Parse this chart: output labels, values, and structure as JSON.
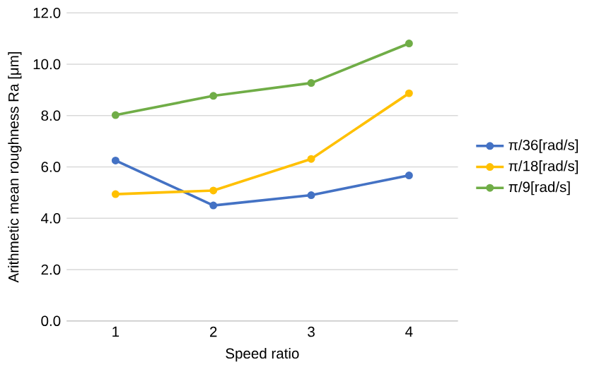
{
  "chart_data": {
    "type": "line",
    "xlabel": "Speed ratio",
    "ylabel": "Arithmetic mean roughness Ra [μm]",
    "categories": [
      "1",
      "2",
      "3",
      "4"
    ],
    "series": [
      {
        "name": "π/36[rad/s]",
        "color": "#4472c4",
        "values": [
          6.25,
          4.5,
          4.9,
          5.67
        ]
      },
      {
        "name": "π/18[rad/s]",
        "color": "#ffc000",
        "values": [
          4.94,
          5.08,
          6.31,
          8.87
        ]
      },
      {
        "name": "π/9[rad/s]",
        "color": "#70ad47",
        "values": [
          8.02,
          8.77,
          9.27,
          10.81
        ]
      }
    ],
    "ylim": [
      0,
      12
    ],
    "yticks": [
      {
        "value": 0,
        "label": "0.0"
      },
      {
        "value": 2,
        "label": "2.0"
      },
      {
        "value": 4,
        "label": "4.0"
      },
      {
        "value": 6,
        "label": "6.0"
      },
      {
        "value": 8,
        "label": "8.0"
      },
      {
        "value": 10,
        "label": "10.0"
      },
      {
        "value": 12,
        "label": "12.0"
      }
    ],
    "grid": "y",
    "legend": "right",
    "marker": "circle",
    "line_style": "solid"
  }
}
